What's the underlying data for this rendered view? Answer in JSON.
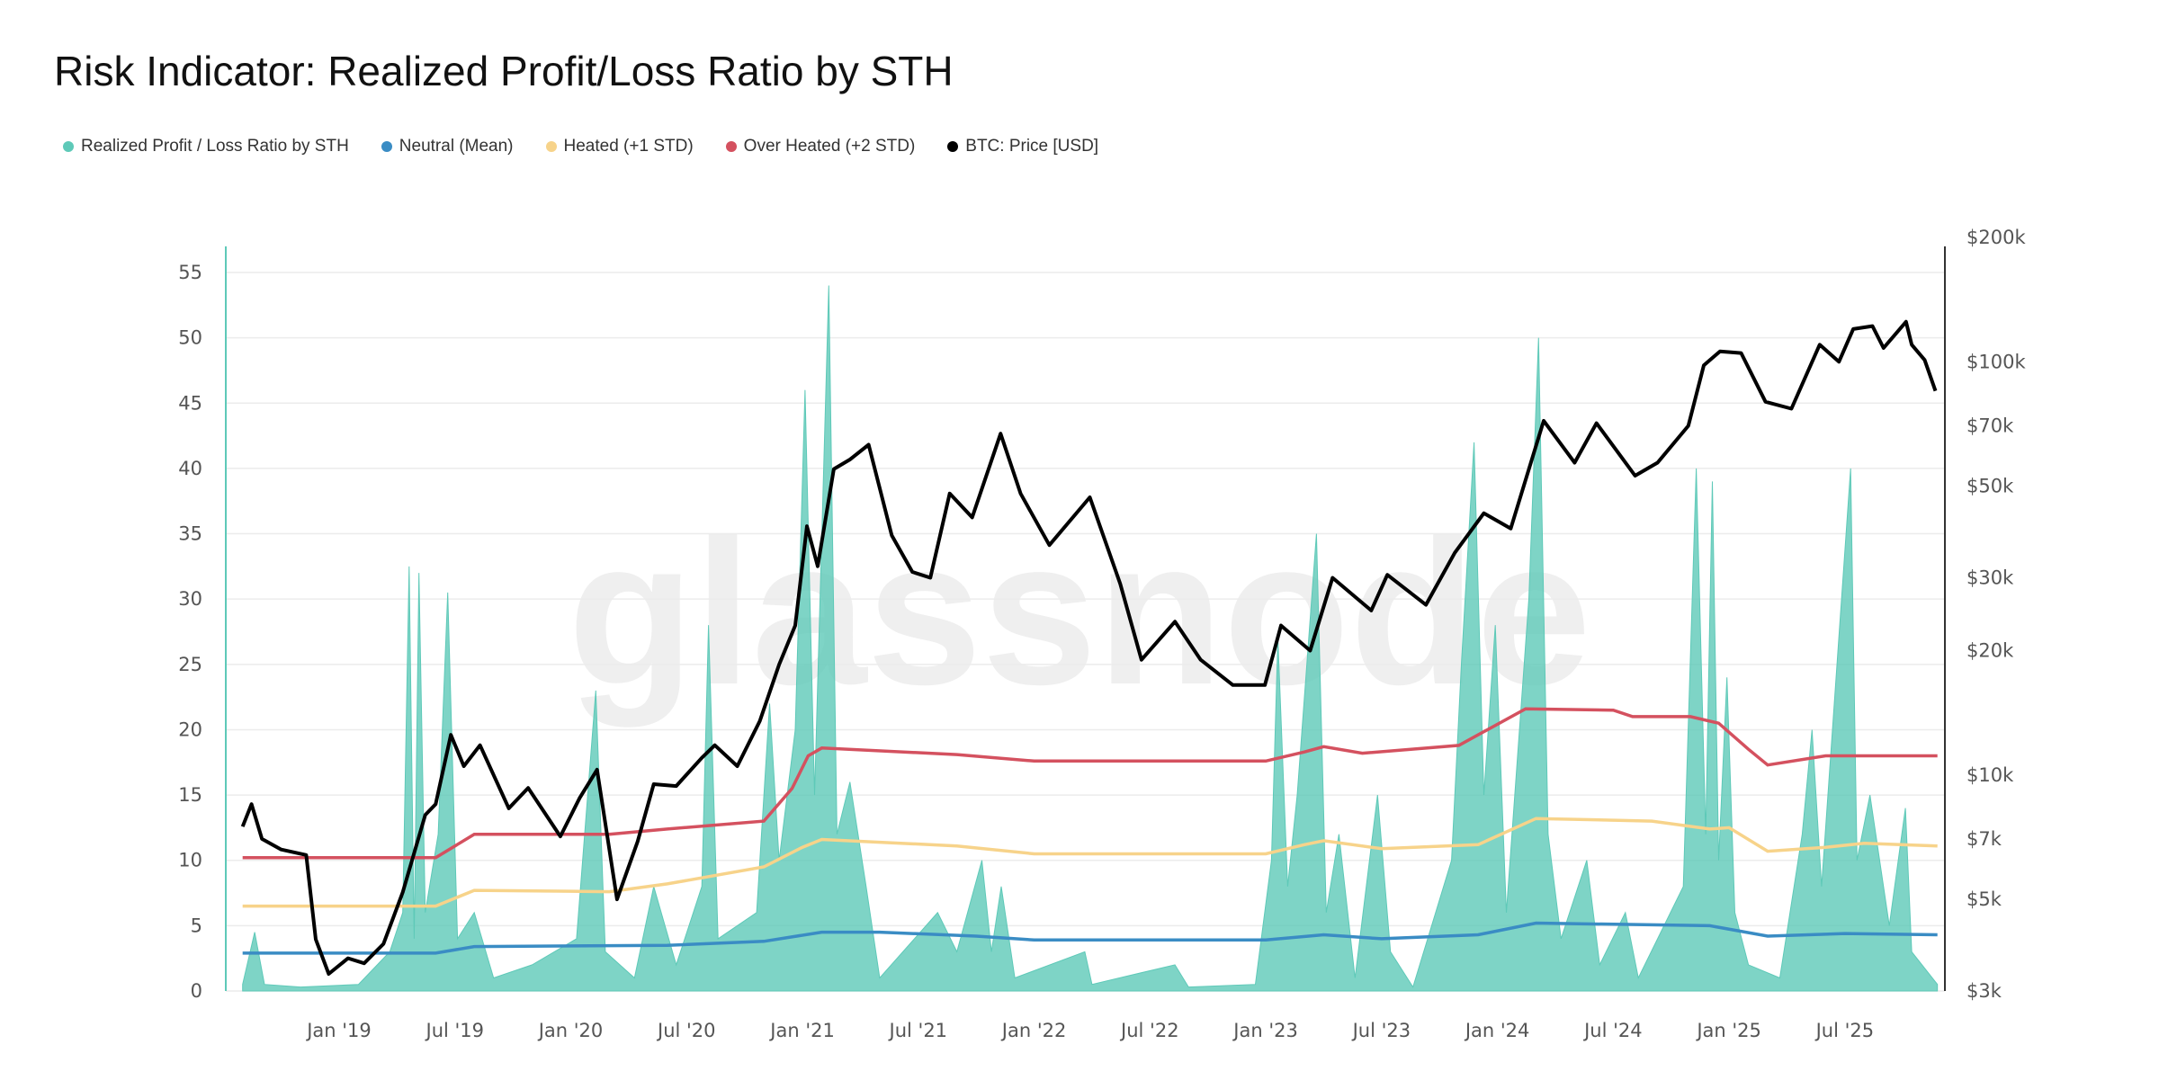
{
  "title": "Risk Indicator: Realized Profit/Loss Ratio by STH",
  "watermark": "glassnode",
  "colors": {
    "ratio": "#5ec9b8",
    "neutral": "#3a8cc4",
    "heated": "#f7d38a",
    "overheated": "#d4515f",
    "price": "#000000"
  },
  "legend": [
    {
      "label": "Realized Profit / Loss Ratio by STH",
      "color": "#5ec9b8"
    },
    {
      "label": "Neutral (Mean)",
      "color": "#3a8cc4"
    },
    {
      "label": "Heated (+1 STD)",
      "color": "#f7d38a"
    },
    {
      "label": "Over Heated (+2 STD)",
      "color": "#d4515f"
    },
    {
      "label": "BTC: Price [USD]",
      "color": "#000000"
    }
  ],
  "chart_data": {
    "type": "area+line",
    "title": "Risk Indicator: Realized Profit/Loss Ratio by STH",
    "grid": true,
    "legend_position": "top-left",
    "x_ticks": [
      "Jan '19",
      "Jul '19",
      "Jan '20",
      "Jul '20",
      "Jan '21",
      "Jul '21",
      "Jan '22",
      "Jul '22",
      "Jan '23",
      "Jul '23",
      "Jan '24",
      "Jul '24",
      "Jan '25",
      "Jul '25"
    ],
    "y_left": {
      "ylim": [
        0,
        55
      ],
      "ticks": [
        "0",
        "5",
        "10",
        "15",
        "20",
        "25",
        "30",
        "35",
        "40",
        "45",
        "50",
        "55"
      ]
    },
    "y_right": {
      "scale": "log",
      "ylim": [
        3000,
        200000
      ],
      "ticks": [
        {
          "v": 3000,
          "l": "$3k"
        },
        {
          "v": 5000,
          "l": "$5k"
        },
        {
          "v": 7000,
          "l": "$7k"
        },
        {
          "v": 10000,
          "l": "$10k"
        },
        {
          "v": 20000,
          "l": "$20k"
        },
        {
          "v": 30000,
          "l": "$30k"
        },
        {
          "v": 50000,
          "l": "$50k"
        },
        {
          "v": 70000,
          "l": "$70k"
        },
        {
          "v": 100000,
          "l": "$100k"
        },
        {
          "v": 200000,
          "l": "$200k"
        }
      ]
    },
    "series": [
      {
        "name": "Realized Profit / Loss Ratio by STH",
        "axis": "left",
        "type": "area",
        "points": [
          [
            "2018-08-01",
            0.5
          ],
          [
            "2018-08-20",
            4.5
          ],
          [
            "2018-09-05",
            0.5
          ],
          [
            "2018-11-01",
            0.3
          ],
          [
            "2019-02-01",
            0.5
          ],
          [
            "2019-03-20",
            3
          ],
          [
            "2019-04-10",
            6
          ],
          [
            "2019-04-20",
            32.5
          ],
          [
            "2019-04-28",
            4
          ],
          [
            "2019-05-05",
            32
          ],
          [
            "2019-05-15",
            6
          ],
          [
            "2019-06-05",
            12
          ],
          [
            "2019-06-20",
            30.5
          ],
          [
            "2019-07-05",
            4
          ],
          [
            "2019-08-01",
            6
          ],
          [
            "2019-09-01",
            1
          ],
          [
            "2019-11-01",
            2
          ],
          [
            "2020-01-10",
            4
          ],
          [
            "2020-02-10",
            23
          ],
          [
            "2020-02-25",
            3
          ],
          [
            "2020-04-10",
            1
          ],
          [
            "2020-05-10",
            8
          ],
          [
            "2020-06-15",
            2
          ],
          [
            "2020-07-25",
            8
          ],
          [
            "2020-08-05",
            28
          ],
          [
            "2020-08-20",
            4
          ],
          [
            "2020-10-20",
            6
          ],
          [
            "2020-11-10",
            22
          ],
          [
            "2020-11-25",
            10
          ],
          [
            "2020-12-20",
            20
          ],
          [
            "2021-01-05",
            46
          ],
          [
            "2021-01-20",
            15
          ],
          [
            "2021-02-12",
            54
          ],
          [
            "2021-02-25",
            12
          ],
          [
            "2021-03-15",
            16
          ],
          [
            "2021-04-10",
            8
          ],
          [
            "2021-05-01",
            1
          ],
          [
            "2021-08-01",
            6
          ],
          [
            "2021-09-01",
            3
          ],
          [
            "2021-10-10",
            10
          ],
          [
            "2021-10-25",
            3
          ],
          [
            "2021-11-10",
            8
          ],
          [
            "2021-12-01",
            1
          ],
          [
            "2022-03-20",
            3
          ],
          [
            "2022-04-01",
            0.5
          ],
          [
            "2022-08-10",
            2
          ],
          [
            "2022-09-01",
            0.3
          ],
          [
            "2022-12-15",
            0.5
          ],
          [
            "2023-01-10",
            10
          ],
          [
            "2023-01-20",
            27
          ],
          [
            "2023-02-05",
            8
          ],
          [
            "2023-02-20",
            15
          ],
          [
            "2023-03-20",
            35
          ],
          [
            "2023-04-05",
            6
          ],
          [
            "2023-04-25",
            12
          ],
          [
            "2023-05-20",
            1
          ],
          [
            "2023-06-25",
            15
          ],
          [
            "2023-07-15",
            3
          ],
          [
            "2023-08-20",
            0.3
          ],
          [
            "2023-10-20",
            10
          ],
          [
            "2023-11-05",
            25
          ],
          [
            "2023-11-25",
            42
          ],
          [
            "2023-12-10",
            15
          ],
          [
            "2023-12-28",
            28
          ],
          [
            "2024-01-15",
            6
          ],
          [
            "2024-02-20",
            30
          ],
          [
            "2024-03-05",
            50
          ],
          [
            "2024-03-20",
            12
          ],
          [
            "2024-04-10",
            4
          ],
          [
            "2024-05-20",
            10
          ],
          [
            "2024-06-10",
            2
          ],
          [
            "2024-07-20",
            6
          ],
          [
            "2024-08-10",
            1
          ],
          [
            "2024-10-20",
            8
          ],
          [
            "2024-11-10",
            40
          ],
          [
            "2024-11-25",
            12
          ],
          [
            "2024-12-05",
            39
          ],
          [
            "2024-12-15",
            10
          ],
          [
            "2024-12-28",
            24
          ],
          [
            "2025-01-10",
            6
          ],
          [
            "2025-02-01",
            2
          ],
          [
            "2025-03-20",
            1
          ],
          [
            "2025-04-25",
            12
          ],
          [
            "2025-05-10",
            20
          ],
          [
            "2025-05-25",
            8
          ],
          [
            "2025-07-10",
            40
          ],
          [
            "2025-07-20",
            10
          ],
          [
            "2025-08-10",
            15
          ],
          [
            "2025-09-10",
            5
          ],
          [
            "2025-10-05",
            14
          ],
          [
            "2025-10-15",
            3
          ],
          [
            "2025-11-25",
            0.5
          ]
        ]
      },
      {
        "name": "Neutral (Mean)",
        "axis": "left",
        "type": "line",
        "points": [
          [
            "2018-08-01",
            2.9
          ],
          [
            "2019-06-01",
            2.9
          ],
          [
            "2019-08-01",
            3.4
          ],
          [
            "2020-06-01",
            3.5
          ],
          [
            "2020-11-01",
            3.8
          ],
          [
            "2021-02-01",
            4.5
          ],
          [
            "2021-05-01",
            4.5
          ],
          [
            "2021-10-01",
            4.2
          ],
          [
            "2022-01-01",
            3.9
          ],
          [
            "2023-01-01",
            3.9
          ],
          [
            "2023-04-01",
            4.3
          ],
          [
            "2023-07-01",
            4.0
          ],
          [
            "2023-12-01",
            4.3
          ],
          [
            "2024-03-01",
            5.2
          ],
          [
            "2024-12-01",
            5.0
          ],
          [
            "2025-03-01",
            4.2
          ],
          [
            "2025-07-01",
            4.4
          ],
          [
            "2025-11-25",
            4.3
          ]
        ]
      },
      {
        "name": "Heated (+1 STD)",
        "axis": "left",
        "type": "line",
        "points": [
          [
            "2018-08-01",
            6.5
          ],
          [
            "2019-06-01",
            6.5
          ],
          [
            "2019-08-01",
            7.7
          ],
          [
            "2020-03-01",
            7.6
          ],
          [
            "2020-06-01",
            8.2
          ],
          [
            "2020-11-01",
            9.5
          ],
          [
            "2021-01-01",
            11
          ],
          [
            "2021-02-01",
            11.6
          ],
          [
            "2021-09-01",
            11.1
          ],
          [
            "2022-01-01",
            10.5
          ],
          [
            "2023-01-01",
            10.5
          ],
          [
            "2023-03-01",
            11.2
          ],
          [
            "2023-04-01",
            11.5
          ],
          [
            "2023-07-01",
            10.9
          ],
          [
            "2023-12-01",
            11.2
          ],
          [
            "2024-03-01",
            13.2
          ],
          [
            "2024-09-01",
            13
          ],
          [
            "2024-12-01",
            12.4
          ],
          [
            "2025-01-01",
            12.5
          ],
          [
            "2025-03-01",
            10.7
          ],
          [
            "2025-06-01",
            11
          ],
          [
            "2025-08-01",
            11.3
          ],
          [
            "2025-11-25",
            11.1
          ]
        ]
      },
      {
        "name": "Over Heated (+2 STD)",
        "axis": "left",
        "type": "line",
        "points": [
          [
            "2018-08-01",
            10.2
          ],
          [
            "2019-06-01",
            10.2
          ],
          [
            "2019-08-01",
            12
          ],
          [
            "2020-03-01",
            12
          ],
          [
            "2020-06-01",
            12.4
          ],
          [
            "2020-11-01",
            13
          ],
          [
            "2020-12-15",
            15.5
          ],
          [
            "2021-01-10",
            18
          ],
          [
            "2021-02-01",
            18.6
          ],
          [
            "2021-09-01",
            18.1
          ],
          [
            "2022-01-01",
            17.6
          ],
          [
            "2023-01-01",
            17.6
          ],
          [
            "2023-03-01",
            18.3
          ],
          [
            "2023-04-01",
            18.7
          ],
          [
            "2023-06-01",
            18.2
          ],
          [
            "2023-11-01",
            18.8
          ],
          [
            "2024-02-15",
            21.6
          ],
          [
            "2024-07-01",
            21.5
          ],
          [
            "2024-08-01",
            21
          ],
          [
            "2024-11-01",
            21
          ],
          [
            "2024-12-15",
            20.5
          ],
          [
            "2025-02-01",
            18.5
          ],
          [
            "2025-03-01",
            17.3
          ],
          [
            "2025-06-01",
            18
          ],
          [
            "2025-11-25",
            18
          ]
        ]
      },
      {
        "name": "BTC: Price [USD]",
        "axis": "right",
        "type": "line",
        "points": [
          [
            "2018-08-01",
            7500
          ],
          [
            "2018-08-15",
            8500
          ],
          [
            "2018-09-01",
            7000
          ],
          [
            "2018-10-01",
            6600
          ],
          [
            "2018-11-10",
            6400
          ],
          [
            "2018-11-25",
            4000
          ],
          [
            "2018-12-15",
            3300
          ],
          [
            "2019-01-15",
            3600
          ],
          [
            "2019-02-10",
            3500
          ],
          [
            "2019-03-10",
            3900
          ],
          [
            "2019-04-10",
            5200
          ],
          [
            "2019-05-15",
            8000
          ],
          [
            "2019-06-01",
            8500
          ],
          [
            "2019-06-25",
            12500
          ],
          [
            "2019-07-15",
            10500
          ],
          [
            "2019-08-10",
            11800
          ],
          [
            "2019-09-25",
            8300
          ],
          [
            "2019-10-25",
            9300
          ],
          [
            "2019-12-15",
            7100
          ],
          [
            "2020-01-15",
            8800
          ],
          [
            "2020-02-12",
            10300
          ],
          [
            "2020-03-13",
            5000
          ],
          [
            "2020-04-15",
            6900
          ],
          [
            "2020-05-10",
            9500
          ],
          [
            "2020-06-15",
            9400
          ],
          [
            "2020-07-25",
            11000
          ],
          [
            "2020-08-15",
            11800
          ],
          [
            "2020-09-20",
            10500
          ],
          [
            "2020-10-25",
            13500
          ],
          [
            "2020-11-25",
            18500
          ],
          [
            "2020-12-20",
            23000
          ],
          [
            "2021-01-08",
            40000
          ],
          [
            "2021-01-25",
            32000
          ],
          [
            "2021-02-20",
            55000
          ],
          [
            "2021-03-15",
            58000
          ],
          [
            "2021-04-14",
            63000
          ],
          [
            "2021-05-20",
            38000
          ],
          [
            "2021-06-22",
            31000
          ],
          [
            "2021-07-20",
            30000
          ],
          [
            "2021-08-20",
            48000
          ],
          [
            "2021-09-25",
            42000
          ],
          [
            "2021-11-09",
            67000
          ],
          [
            "2021-12-10",
            48000
          ],
          [
            "2022-01-25",
            36000
          ],
          [
            "2022-03-28",
            47000
          ],
          [
            "2022-05-15",
            29000
          ],
          [
            "2022-06-18",
            19000
          ],
          [
            "2022-08-10",
            23500
          ],
          [
            "2022-09-20",
            19000
          ],
          [
            "2022-11-10",
            16500
          ],
          [
            "2022-12-30",
            16500
          ],
          [
            "2023-01-25",
            23000
          ],
          [
            "2023-03-10",
            20000
          ],
          [
            "2023-04-15",
            30000
          ],
          [
            "2023-06-15",
            25000
          ],
          [
            "2023-07-10",
            30500
          ],
          [
            "2023-09-10",
            25800
          ],
          [
            "2023-10-25",
            34500
          ],
          [
            "2023-12-10",
            43000
          ],
          [
            "2024-01-22",
            39500
          ],
          [
            "2024-03-13",
            72000
          ],
          [
            "2024-05-01",
            57000
          ],
          [
            "2024-06-05",
            71000
          ],
          [
            "2024-08-05",
            53000
          ],
          [
            "2024-09-10",
            57000
          ],
          [
            "2024-10-28",
            70000
          ],
          [
            "2024-11-22",
            98000
          ],
          [
            "2024-12-17",
            106000
          ],
          [
            "2025-01-20",
            105000
          ],
          [
            "2025-02-28",
            80000
          ],
          [
            "2025-04-08",
            77000
          ],
          [
            "2025-05-22",
            110000
          ],
          [
            "2025-06-22",
            100000
          ],
          [
            "2025-07-14",
            120000
          ],
          [
            "2025-08-14",
            122000
          ],
          [
            "2025-09-01",
            108000
          ],
          [
            "2025-10-06",
            125000
          ],
          [
            "2025-10-15",
            110000
          ],
          [
            "2025-11-05",
            101000
          ],
          [
            "2025-11-22",
            85000
          ]
        ]
      }
    ]
  }
}
